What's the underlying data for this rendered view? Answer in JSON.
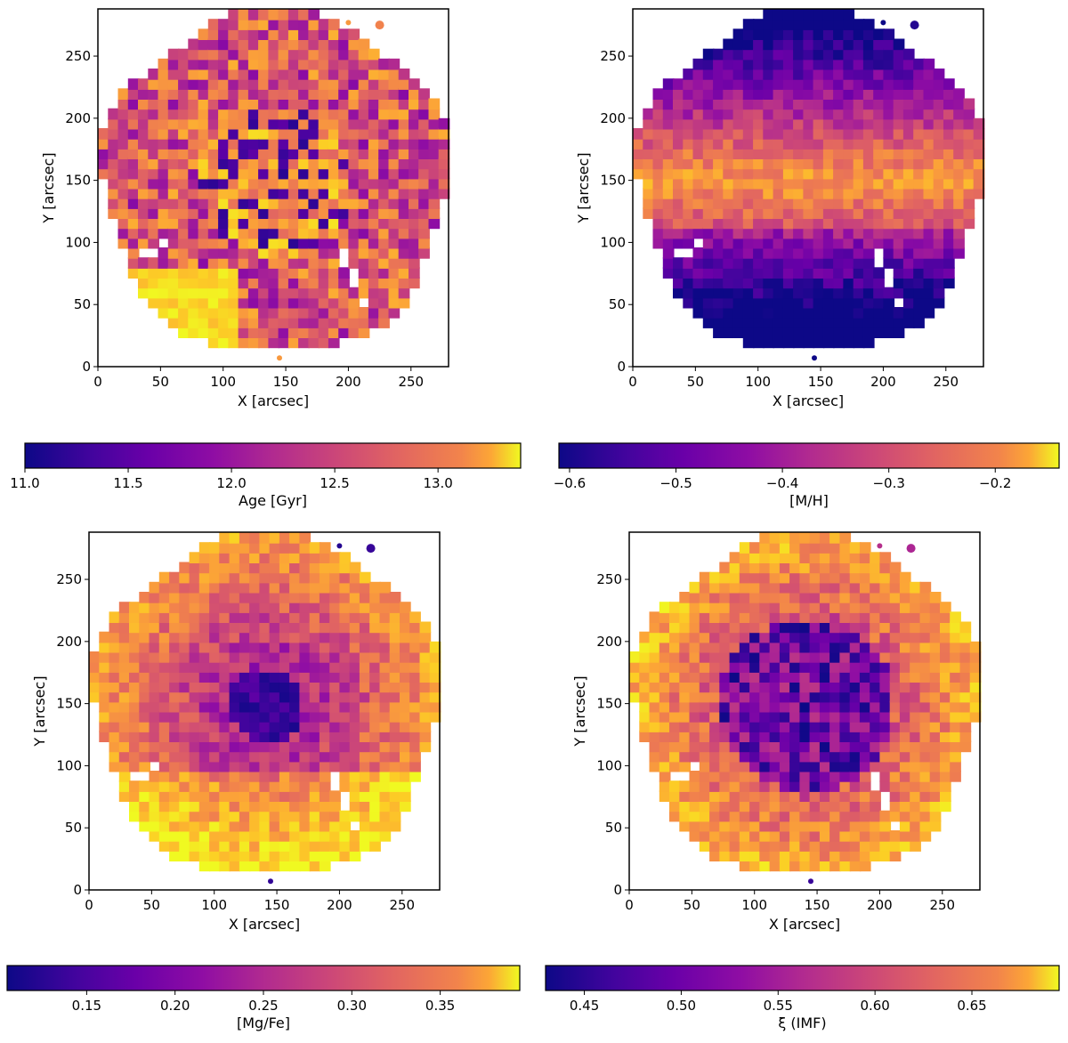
{
  "chart_data": [
    {
      "type": "heatmap",
      "title": "",
      "xlabel": "X [arcsec]",
      "ylabel": "Y [arcsec]",
      "xlim": [
        0,
        280
      ],
      "ylim": [
        0,
        288
      ],
      "xticks": [
        0,
        50,
        100,
        150,
        200,
        250
      ],
      "yticks": [
        0,
        50,
        100,
        150,
        200,
        250
      ],
      "colormap": "plasma",
      "field_pattern": "age",
      "colorbar": {
        "label": "Age [Gyr]",
        "range": [
          11.0,
          13.4
        ],
        "ticks": [
          11.0,
          11.5,
          12.0,
          12.5,
          13.0
        ],
        "tick_labels": [
          "11.0",
          "11.5",
          "12.0",
          "12.5",
          "13.0"
        ]
      }
    },
    {
      "type": "heatmap",
      "title": "",
      "xlabel": "X [arcsec]",
      "ylabel": "Y [arcsec]",
      "xlim": [
        0,
        280
      ],
      "ylim": [
        0,
        288
      ],
      "xticks": [
        0,
        50,
        100,
        150,
        200,
        250
      ],
      "yticks": [
        0,
        50,
        100,
        150,
        200,
        250
      ],
      "colormap": "plasma",
      "field_pattern": "metallicity",
      "colorbar": {
        "label": "[M/H]",
        "range": [
          -0.61,
          -0.14
        ],
        "ticks": [
          -0.6,
          -0.5,
          -0.4,
          -0.3,
          -0.2
        ],
        "tick_labels": [
          "−0.6",
          "−0.5",
          "−0.4",
          "−0.3",
          "−0.2"
        ]
      }
    },
    {
      "type": "heatmap",
      "title": "",
      "xlabel": "X [arcsec]",
      "ylabel": "Y [arcsec]",
      "xlim": [
        0,
        280
      ],
      "ylim": [
        0,
        288
      ],
      "xticks": [
        0,
        50,
        100,
        150,
        200,
        250
      ],
      "yticks": [
        0,
        50,
        100,
        150,
        200,
        250
      ],
      "colormap": "plasma",
      "field_pattern": "mgfe",
      "colorbar": {
        "label": "[Mg/Fe]",
        "range": [
          0.105,
          0.395
        ],
        "ticks": [
          0.15,
          0.2,
          0.25,
          0.3,
          0.35
        ],
        "tick_labels": [
          "0.15",
          "0.20",
          "0.25",
          "0.30",
          "0.35"
        ]
      }
    },
    {
      "type": "heatmap",
      "title": "",
      "xlabel": "X [arcsec]",
      "ylabel": "Y [arcsec]",
      "xlim": [
        0,
        280
      ],
      "ylim": [
        0,
        288
      ],
      "xticks": [
        0,
        50,
        100,
        150,
        200,
        250
      ],
      "yticks": [
        0,
        50,
        100,
        150,
        200,
        250
      ],
      "colormap": "plasma",
      "field_pattern": "imf",
      "colorbar": {
        "label": "ξ (IMF)",
        "range": [
          0.43,
          0.695
        ],
        "ticks": [
          0.45,
          0.5,
          0.55,
          0.6,
          0.65
        ],
        "tick_labels": [
          "0.45",
          "0.50",
          "0.55",
          "0.60",
          "0.65"
        ]
      }
    }
  ]
}
